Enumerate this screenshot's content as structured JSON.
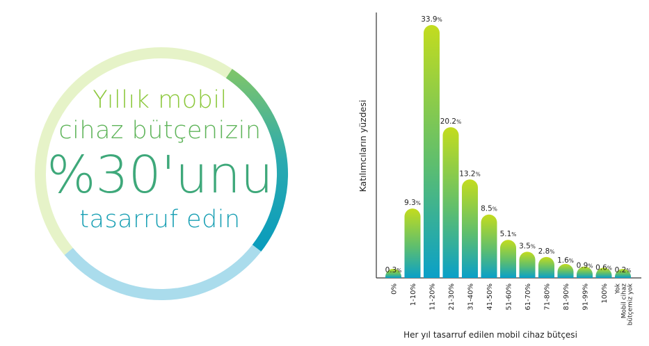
{
  "headline": {
    "line1": "Yıllık mobil",
    "line2": "cihaz bütçenizin",
    "line3": "%30'unu",
    "line4": "tasarruf edin"
  },
  "colors": {
    "bar_top": "#c3dc1e",
    "bar_bottom": "#0aa0c8",
    "ring_light": "#e6f3c8",
    "ring_green": "#8cc864",
    "ring_teal": "#0aa0b4",
    "ring_pale_blue": "#aadcec",
    "axis": "#333333"
  },
  "chart_data": {
    "type": "bar",
    "ylabel": "Katılımcıların yüzdesi",
    "xlabel": "Her yıl tasarruf edilen mobil cihaz bütçesi",
    "categories": [
      "0%",
      "1-10%",
      "11-20%",
      "21-30%",
      "31-40%",
      "41-50%",
      "51-60%",
      "61-70%",
      "71-80%",
      "81-90%",
      "91-99%",
      "100%",
      "Yok|Mobil cihaz|bütçemiz yok"
    ],
    "values": [
      0.3,
      9.3,
      33.9,
      20.2,
      13.2,
      8.5,
      5.1,
      3.5,
      2.8,
      1.6,
      0.9,
      0.6,
      0.2
    ],
    "value_labels": [
      "0.3",
      "9.3",
      "33.9",
      "20.2",
      "13.2",
      "8.5",
      "5.1",
      "3.5",
      "2.8",
      "1.6",
      "0.9",
      "0.6",
      "0.2"
    ],
    "label_suffix": "%",
    "ylim": [
      0,
      35
    ],
    "grid": false,
    "legend": "none"
  }
}
